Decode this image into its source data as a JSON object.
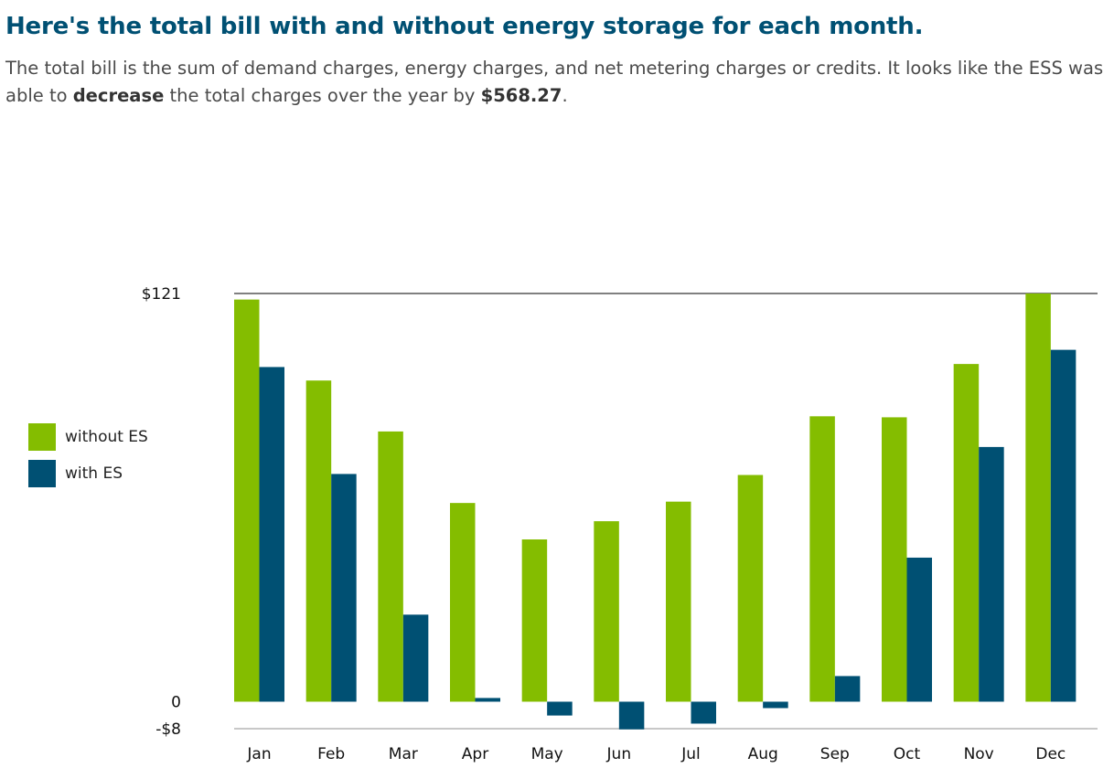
{
  "header": {
    "title": "Here's the total bill with and without energy storage for each month.",
    "subtitle_pre": "The total bill is the sum of demand charges, energy charges, and net metering charges or credits. It looks like the ESS was able to ",
    "subtitle_bold1": "decrease",
    "subtitle_mid": " the total charges over the year by ",
    "subtitle_bold2": "$568.27",
    "subtitle_post": "."
  },
  "legend": [
    {
      "label": "without ES",
      "color": "#84bd00"
    },
    {
      "label": "with ES",
      "color": "#005073"
    }
  ],
  "chart_data": {
    "type": "bar",
    "categories": [
      "Jan",
      "Feb",
      "Mar",
      "Apr",
      "May",
      "Jun",
      "Jul",
      "Aug",
      "Sep",
      "Oct",
      "Nov",
      "Dec"
    ],
    "series": [
      {
        "name": "without ES",
        "color": "#84bd00",
        "values": [
          119.2,
          95.2,
          80.1,
          58.9,
          48.1,
          53.5,
          59.3,
          67.2,
          84.6,
          84.3,
          100.1,
          121.0
        ]
      },
      {
        "name": "with ES",
        "color": "#005073",
        "values": [
          99.2,
          67.5,
          25.8,
          1.1,
          -4.1,
          -8.2,
          -6.5,
          -1.9,
          7.6,
          42.7,
          75.5,
          104.3
        ]
      }
    ],
    "ylim": [
      -8,
      121
    ],
    "yticks": [
      {
        "label": "$121",
        "value": 121
      },
      {
        "label": "0",
        "value": 0
      },
      {
        "label": "-$8",
        "value": -8
      }
    ],
    "xlabel": "",
    "ylabel": "",
    "legend_position": "left"
  }
}
